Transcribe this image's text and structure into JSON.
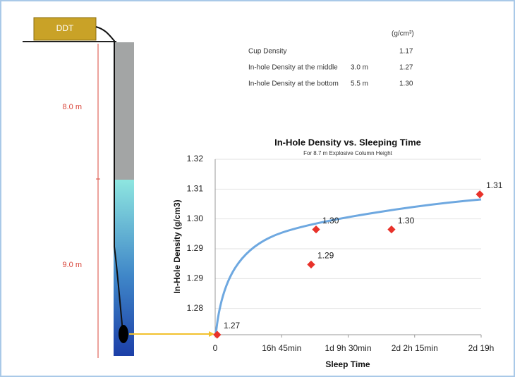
{
  "diagram": {
    "rig_label": "DDT",
    "depth_upper": "8.0 m",
    "depth_lower": "9.0 m",
    "table": {
      "unit": "(g/cm³)",
      "rows": [
        {
          "label": "Cup Density",
          "density": "1.17"
        },
        {
          "label": "In-hole Density at the middle",
          "depth": "3.0 m",
          "density": "1.27"
        },
        {
          "label": "In-hole Density at the bottom",
          "depth": "5.5 m",
          "density": "1.30"
        }
      ]
    }
  },
  "chart_data": {
    "type": "scatter",
    "title": "In-Hole Density vs. Sleeping Time",
    "subtitle": "For 8.7 m Explosive Column Height",
    "x_label": "Sleep Time",
    "y_label": "In-Hole Density (g/cm3)",
    "x": [
      30,
      1525,
      1450,
      2665,
      4000
    ],
    "values": [
      1.27,
      1.3,
      1.29,
      1.3,
      1.31
    ],
    "value_labels": [
      "1.27",
      "1.30",
      "1.29",
      "1.30",
      "1.31"
    ],
    "color": "#e8322a",
    "xlim": [
      0,
      4020
    ],
    "xticks": [
      0,
      {
        "value": 1005,
        "label": "16h 45min"
      },
      {
        "value": 2010,
        "label": "1d 9h 30min"
      },
      {
        "value": 3015,
        "label": "2d 2h 15min"
      },
      {
        "value": 4020,
        "label": "2d 19h"
      }
    ],
    "ylim": [
      1.27,
      1.32
    ],
    "yticks": [
      1.32,
      {
        "value": 1.3115,
        "label": "1.31"
      },
      {
        "value": 1.303,
        "label": "1.30"
      },
      {
        "value": 1.2945,
        "label": "1.29"
      },
      {
        "value": 1.286,
        "label": "1.29"
      },
      {
        "value": 1.2775,
        "label": "1.28"
      }
    ],
    "grid": true
  }
}
